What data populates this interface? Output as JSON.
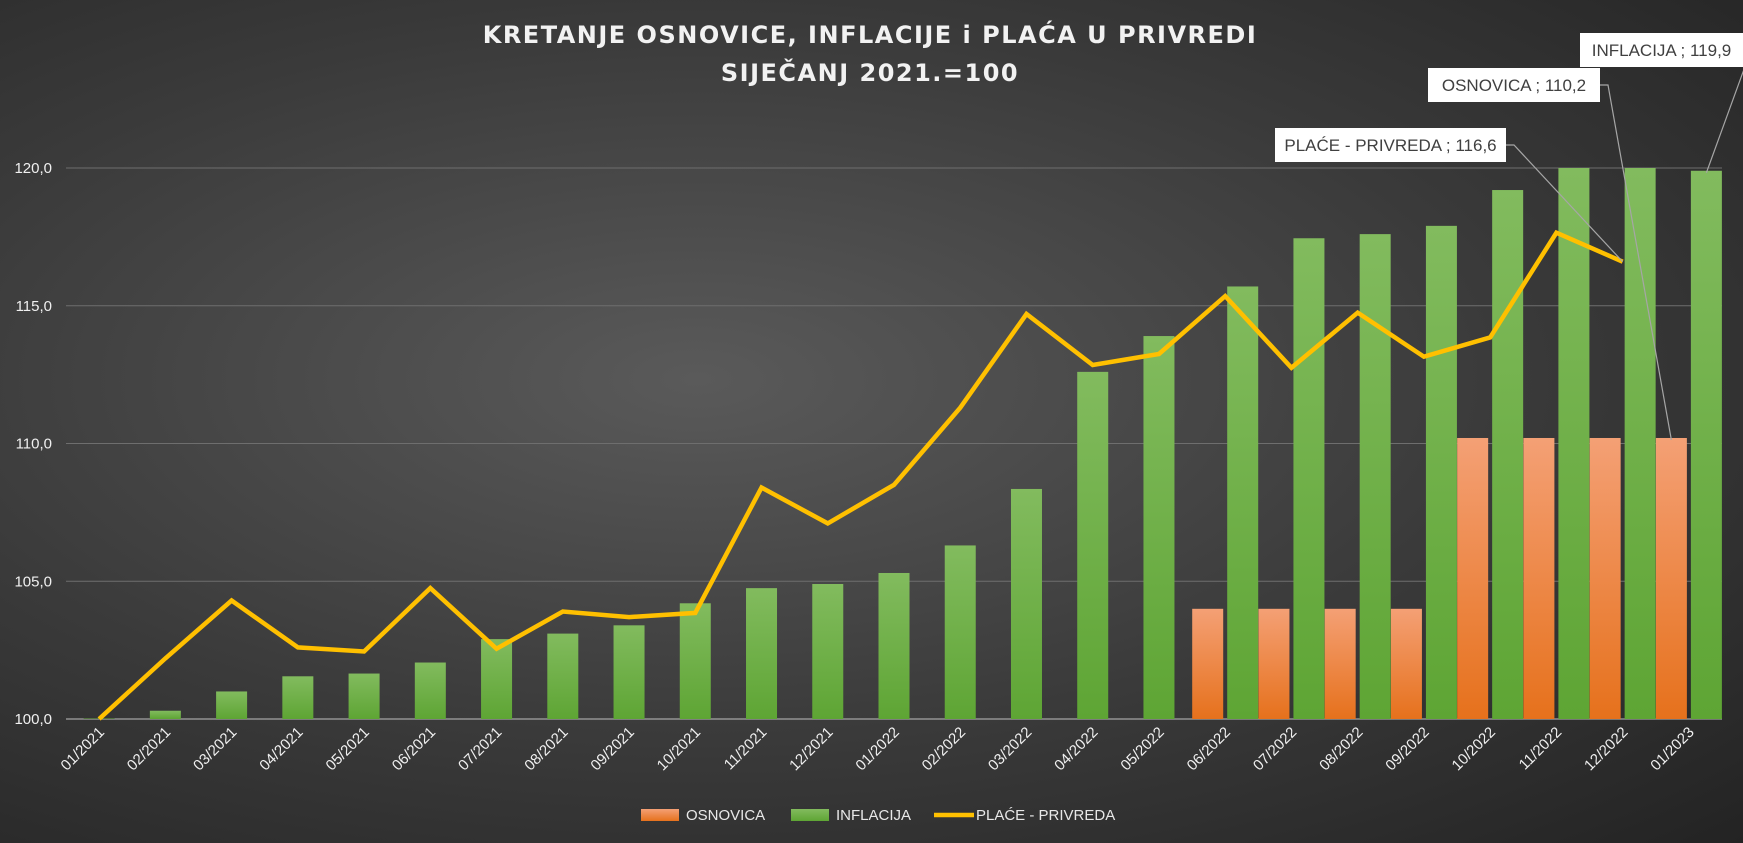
{
  "chart_data": {
    "type": "bar",
    "title": "KRETANJE OSNOVICE, INFLACIJE i PLAĆA U PRIVREDI",
    "subtitle": "SIJEČANJ 2021.=100",
    "categories": [
      "01/2021",
      "02/2021",
      "03/2021",
      "04/2021",
      "05/2021",
      "06/2021",
      "07/2021",
      "08/2021",
      "09/2021",
      "10/2021",
      "11/2021",
      "12/2021",
      "01/2022",
      "02/2022",
      "03/2022",
      "04/2022",
      "05/2022",
      "06/2022",
      "07/2022",
      "08/2022",
      "09/2022",
      "10/2022",
      "11/2022",
      "12/2022",
      "01/2023"
    ],
    "y_ticks": [
      "100,0",
      "105,0",
      "110,0",
      "115,0",
      "120,0"
    ],
    "ylim": [
      100,
      120
    ],
    "grid": true,
    "legend_position": "bottom",
    "series": [
      {
        "name": "OSNOVICA",
        "type": "bar",
        "color": "#f07c33",
        "values": [
          null,
          null,
          null,
          null,
          null,
          null,
          null,
          null,
          null,
          null,
          null,
          null,
          null,
          null,
          null,
          null,
          null,
          104.0,
          104.0,
          104.0,
          104.0,
          110.2,
          110.2,
          110.2,
          110.2
        ]
      },
      {
        "name": "INFLACIJA",
        "type": "bar",
        "color": "#6aad45",
        "values": [
          100.0,
          100.3,
          101.0,
          101.55,
          101.65,
          102.05,
          102.9,
          103.1,
          103.4,
          104.2,
          104.75,
          104.9,
          105.3,
          106.3,
          108.35,
          112.6,
          113.9,
          115.7,
          117.45,
          117.6,
          117.9,
          119.2,
          120.0,
          120.0,
          119.9
        ]
      },
      {
        "name": "PLAĆE - PRIVREDA",
        "type": "line",
        "color": "#ffc000",
        "values": [
          100.0,
          102.2,
          104.3,
          102.6,
          102.45,
          104.75,
          102.55,
          103.9,
          103.7,
          103.85,
          108.4,
          107.1,
          108.5,
          111.3,
          114.7,
          112.85,
          113.25,
          115.35,
          112.75,
          114.75,
          113.15,
          113.85,
          117.65,
          116.6,
          null
        ]
      }
    ],
    "annotations": [
      {
        "text": "INFLACIJA ; 119,9",
        "series": "INFLACIJA",
        "category": "01/2023"
      },
      {
        "text": "OSNOVICA ; 110,2",
        "series": "OSNOVICA",
        "category": "01/2023"
      },
      {
        "text": "PLAĆE - PRIVREDA ; 116,6",
        "series": "PLAĆE - PRIVREDA",
        "category": "12/2022"
      }
    ]
  }
}
